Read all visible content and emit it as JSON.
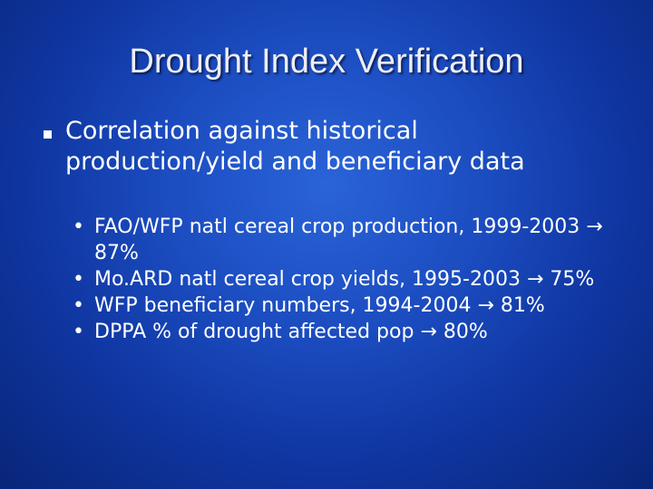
{
  "slide": {
    "title": "Drought Index Verification",
    "main_bullet": "Correlation against historical production/yield and beneficiary data",
    "sub_bullets": [
      {
        "text": "FAO/WFP natl cereal crop production, 1999-2003",
        "result": "87%"
      },
      {
        "text": "Mo.ARD natl cereal crop yields, 1995-2003",
        "result": "75%"
      },
      {
        "text": "WFP beneficiary numbers, 1994-2004",
        "result": "81%"
      },
      {
        "text": "DPPA % of drought affected pop",
        "result": "80%"
      }
    ],
    "bullet_glyph": "•",
    "arrow_glyph": "→",
    "colors": {
      "background": "#1b4cc0",
      "text": "#ffffff"
    }
  }
}
